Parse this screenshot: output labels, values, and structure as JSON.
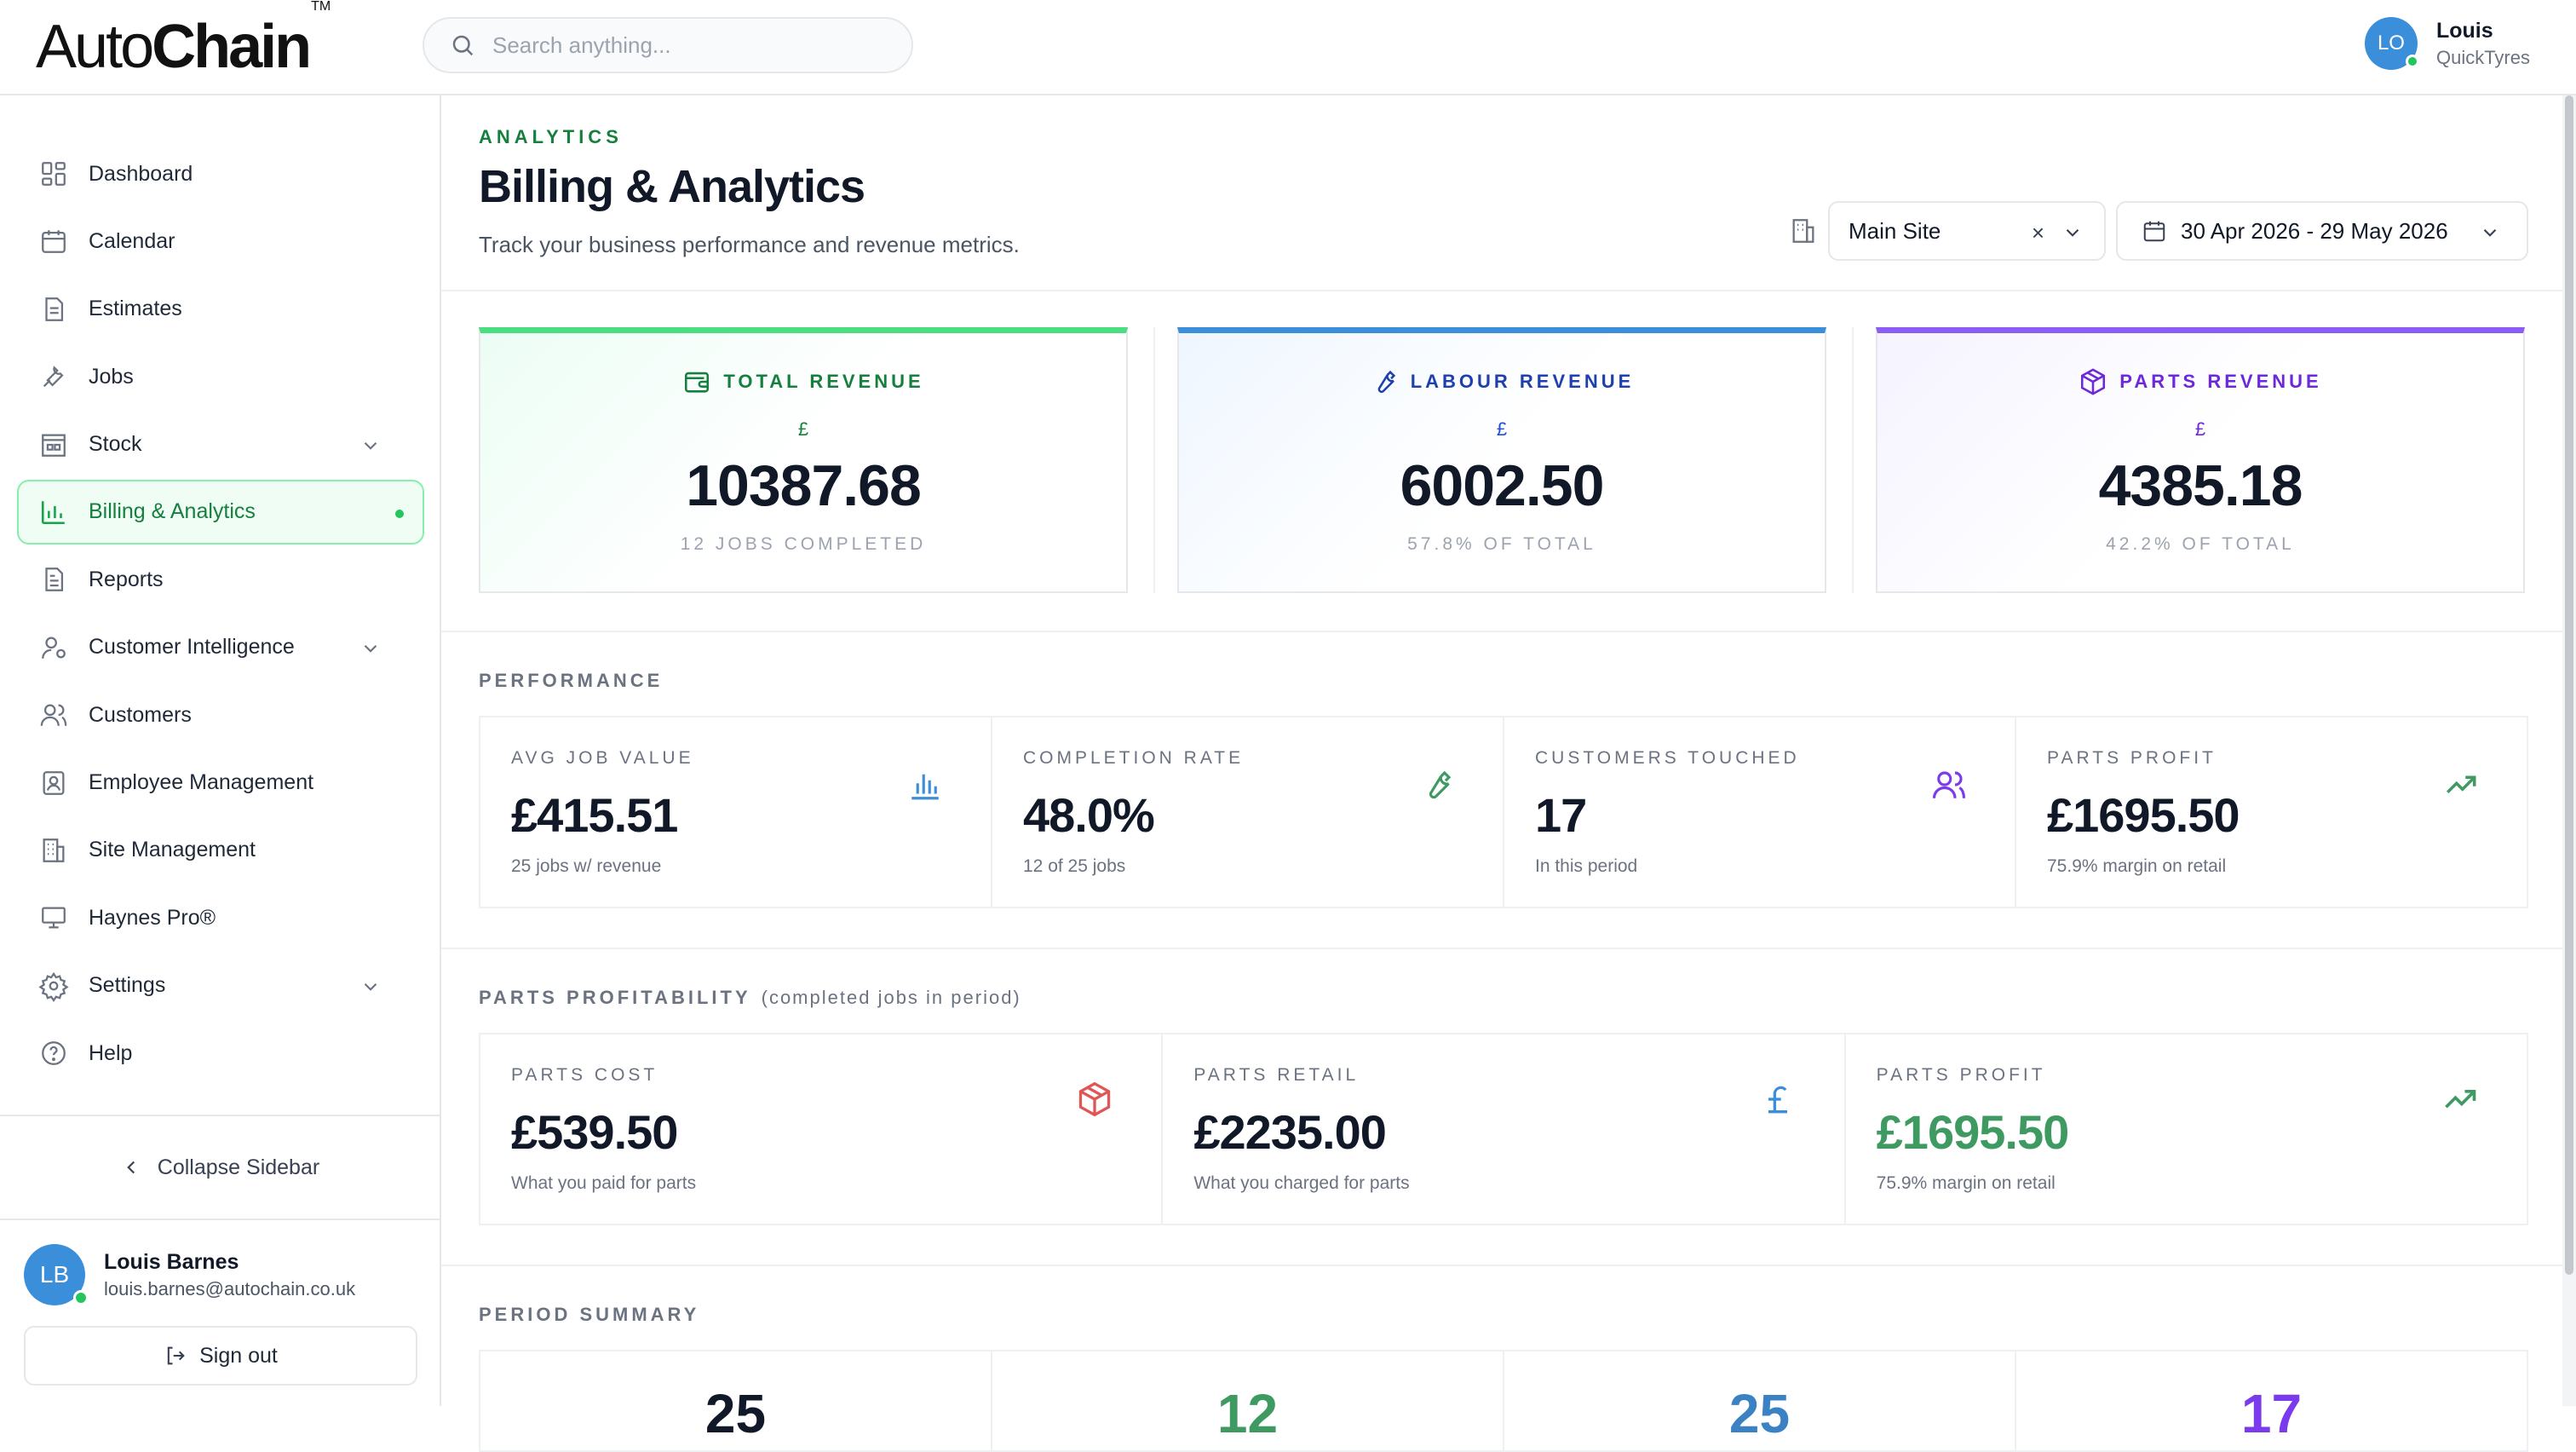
{
  "header": {
    "logo_light": "Auto",
    "logo_bold": "Chain",
    "logo_tm": "TM",
    "search_placeholder": "Search anything...",
    "user_initials": "LO",
    "user_name": "Louis",
    "user_org": "QuickTyres"
  },
  "sidebar": {
    "items": [
      {
        "label": "Dashboard"
      },
      {
        "label": "Calendar"
      },
      {
        "label": "Estimates"
      },
      {
        "label": "Jobs"
      },
      {
        "label": "Stock"
      },
      {
        "label": "Billing & Analytics"
      },
      {
        "label": "Reports"
      },
      {
        "label": "Customer Intelligence"
      },
      {
        "label": "Customers"
      },
      {
        "label": "Employee Management"
      },
      {
        "label": "Site Management"
      },
      {
        "label": "Haynes Pro®"
      },
      {
        "label": "Settings"
      },
      {
        "label": "Help"
      }
    ],
    "collapse_label": "Collapse Sidebar",
    "profile_initials": "LB",
    "profile_name": "Louis Barnes",
    "profile_email": "louis.barnes@autochain.co.uk",
    "signout_label": "Sign out"
  },
  "page": {
    "eyebrow": "ANALYTICS",
    "title": "Billing & Analytics",
    "subtitle": "Track your business performance and revenue metrics.",
    "site_value": "Main Site",
    "site_clear": "×",
    "date_range": "30 Apr 2026 - 29 May 2026"
  },
  "revenue": [
    {
      "label": "TOTAL REVENUE",
      "currency": "£",
      "value": "10387.68",
      "sub": "12 JOBS COMPLETED"
    },
    {
      "label": "LABOUR REVENUE",
      "currency": "£",
      "value": "6002.50",
      "sub": "57.8% OF TOTAL"
    },
    {
      "label": "PARTS REVENUE",
      "currency": "£",
      "value": "4385.18",
      "sub": "42.2% OF TOTAL"
    }
  ],
  "performance": {
    "title": "PERFORMANCE",
    "cards": [
      {
        "label": "AVG JOB VALUE",
        "value": "£415.51",
        "sub": "25 jobs w/ revenue"
      },
      {
        "label": "COMPLETION RATE",
        "value": "48.0%",
        "sub": "12 of 25 jobs"
      },
      {
        "label": "CUSTOMERS TOUCHED",
        "value": "17",
        "sub": "In this period"
      },
      {
        "label": "PARTS PROFIT",
        "value": "£1695.50",
        "sub": "75.9% margin on retail"
      }
    ]
  },
  "parts": {
    "title": "PARTS PROFITABILITY",
    "note": "(completed jobs in period)",
    "cards": [
      {
        "label": "PARTS COST",
        "value": "£539.50",
        "sub": "What you paid for parts"
      },
      {
        "label": "PARTS RETAIL",
        "value": "£2235.00",
        "sub": "What you charged for parts"
      },
      {
        "label": "PARTS PROFIT",
        "value": "£1695.50",
        "sub": "75.9% margin on retail"
      }
    ]
  },
  "summary": {
    "title": "PERIOD SUMMARY",
    "values": [
      "25",
      "12",
      "25",
      "17"
    ],
    "colors": [
      "#111827",
      "#3f9a62",
      "#3b82c4",
      "#7c3aed"
    ]
  }
}
